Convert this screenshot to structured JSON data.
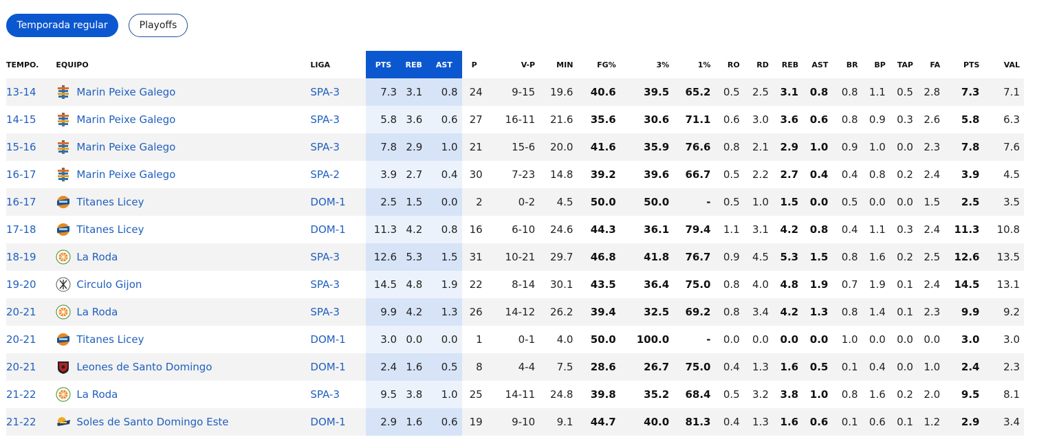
{
  "tabs": [
    {
      "label": "Temporada regular",
      "active": true
    },
    {
      "label": "Playoffs",
      "active": false
    }
  ],
  "headers": [
    "TEMPO.",
    "EQUIPO",
    "LIGA",
    "PTS",
    "REB",
    "AST",
    "P",
    "V-P",
    "MIN",
    "FG%",
    "3%",
    "1%",
    "RO",
    "RD",
    "REB",
    "AST",
    "BR",
    "BP",
    "TAP",
    "FA",
    "PTS",
    "VAL"
  ],
  "rows": [
    {
      "season": "13-14",
      "team": "Marin Peixe Galego",
      "logo": "marin-logo-icon",
      "league": "SPA-3",
      "pts_h": "7.3",
      "reb_h": "3.1",
      "ast_h": "0.8",
      "p": "24",
      "vp": "9-15",
      "min": "19.6",
      "fg": "40.6",
      "p3": "39.5",
      "p1": "65.2",
      "ro": "0.5",
      "rd": "2.5",
      "reb": "3.1",
      "ast": "0.8",
      "br": "0.8",
      "bp": "1.1",
      "tap": "0.5",
      "fa": "2.8",
      "pts": "7.3",
      "val": "7.1"
    },
    {
      "season": "14-15",
      "team": "Marin Peixe Galego",
      "logo": "marin-logo-icon",
      "league": "SPA-3",
      "pts_h": "5.8",
      "reb_h": "3.6",
      "ast_h": "0.6",
      "p": "27",
      "vp": "16-11",
      "min": "21.6",
      "fg": "35.6",
      "p3": "30.6",
      "p1": "71.1",
      "ro": "0.6",
      "rd": "3.0",
      "reb": "3.6",
      "ast": "0.6",
      "br": "0.8",
      "bp": "0.9",
      "tap": "0.3",
      "fa": "2.6",
      "pts": "5.8",
      "val": "6.3"
    },
    {
      "season": "15-16",
      "team": "Marin Peixe Galego",
      "logo": "marin-logo-icon",
      "league": "SPA-3",
      "pts_h": "7.8",
      "reb_h": "2.9",
      "ast_h": "1.0",
      "p": "21",
      "vp": "15-6",
      "min": "20.0",
      "fg": "41.6",
      "p3": "35.9",
      "p1": "76.6",
      "ro": "0.8",
      "rd": "2.1",
      "reb": "2.9",
      "ast": "1.0",
      "br": "0.9",
      "bp": "1.0",
      "tap": "0.0",
      "fa": "2.3",
      "pts": "7.8",
      "val": "7.6"
    },
    {
      "season": "16-17",
      "team": "Marin Peixe Galego",
      "logo": "marin-logo-icon",
      "league": "SPA-2",
      "pts_h": "3.9",
      "reb_h": "2.7",
      "ast_h": "0.4",
      "p": "30",
      "vp": "7-23",
      "min": "14.8",
      "fg": "39.2",
      "p3": "39.6",
      "p1": "66.7",
      "ro": "0.5",
      "rd": "2.2",
      "reb": "2.7",
      "ast": "0.4",
      "br": "0.4",
      "bp": "0.8",
      "tap": "0.2",
      "fa": "2.4",
      "pts": "3.9",
      "val": "4.5"
    },
    {
      "season": "16-17",
      "team": "Titanes Licey",
      "logo": "titanes-logo-icon",
      "league": "DOM-1",
      "pts_h": "2.5",
      "reb_h": "1.5",
      "ast_h": "0.0",
      "p": "2",
      "vp": "0-2",
      "min": "4.5",
      "fg": "50.0",
      "p3": "50.0",
      "p1": "-",
      "ro": "0.5",
      "rd": "1.0",
      "reb": "1.5",
      "ast": "0.0",
      "br": "0.5",
      "bp": "0.0",
      "tap": "0.0",
      "fa": "1.5",
      "pts": "2.5",
      "val": "3.5"
    },
    {
      "season": "17-18",
      "team": "Titanes Licey",
      "logo": "titanes-logo-icon",
      "league": "DOM-1",
      "pts_h": "11.3",
      "reb_h": "4.2",
      "ast_h": "0.8",
      "p": "16",
      "vp": "6-10",
      "min": "24.6",
      "fg": "44.3",
      "p3": "36.1",
      "p1": "79.4",
      "ro": "1.1",
      "rd": "3.1",
      "reb": "4.2",
      "ast": "0.8",
      "br": "0.4",
      "bp": "1.1",
      "tap": "0.3",
      "fa": "2.4",
      "pts": "11.3",
      "val": "10.8"
    },
    {
      "season": "18-19",
      "team": "La Roda",
      "logo": "laroda-logo-icon",
      "league": "SPA-3",
      "pts_h": "12.6",
      "reb_h": "5.3",
      "ast_h": "1.5",
      "p": "31",
      "vp": "10-21",
      "min": "29.7",
      "fg": "46.8",
      "p3": "41.8",
      "p1": "76.7",
      "ro": "0.9",
      "rd": "4.5",
      "reb": "5.3",
      "ast": "1.5",
      "br": "0.8",
      "bp": "1.6",
      "tap": "0.2",
      "fa": "2.5",
      "pts": "12.6",
      "val": "13.5"
    },
    {
      "season": "19-20",
      "team": "Circulo Gijon",
      "logo": "circulo-logo-icon",
      "league": "SPA-3",
      "pts_h": "14.5",
      "reb_h": "4.8",
      "ast_h": "1.9",
      "p": "22",
      "vp": "8-14",
      "min": "30.1",
      "fg": "43.5",
      "p3": "36.4",
      "p1": "75.0",
      "ro": "0.8",
      "rd": "4.0",
      "reb": "4.8",
      "ast": "1.9",
      "br": "0.7",
      "bp": "1.9",
      "tap": "0.1",
      "fa": "2.4",
      "pts": "14.5",
      "val": "13.1"
    },
    {
      "season": "20-21",
      "team": "La Roda",
      "logo": "laroda-logo-icon",
      "league": "SPA-3",
      "pts_h": "9.9",
      "reb_h": "4.2",
      "ast_h": "1.3",
      "p": "26",
      "vp": "14-12",
      "min": "26.2",
      "fg": "39.4",
      "p3": "32.5",
      "p1": "69.2",
      "ro": "0.8",
      "rd": "3.4",
      "reb": "4.2",
      "ast": "1.3",
      "br": "0.8",
      "bp": "1.4",
      "tap": "0.1",
      "fa": "2.3",
      "pts": "9.9",
      "val": "9.2"
    },
    {
      "season": "20-21",
      "team": "Titanes Licey",
      "logo": "titanes-logo-icon",
      "league": "DOM-1",
      "pts_h": "3.0",
      "reb_h": "0.0",
      "ast_h": "0.0",
      "p": "1",
      "vp": "0-1",
      "min": "4.0",
      "fg": "50.0",
      "p3": "100.0",
      "p1": "-",
      "ro": "0.0",
      "rd": "0.0",
      "reb": "0.0",
      "ast": "0.0",
      "br": "1.0",
      "bp": "0.0",
      "tap": "0.0",
      "fa": "0.0",
      "pts": "3.0",
      "val": "3.0"
    },
    {
      "season": "20-21",
      "team": "Leones de Santo Domingo",
      "logo": "leones-logo-icon",
      "league": "DOM-1",
      "pts_h": "2.4",
      "reb_h": "1.6",
      "ast_h": "0.5",
      "p": "8",
      "vp": "4-4",
      "min": "7.5",
      "fg": "28.6",
      "p3": "26.7",
      "p1": "75.0",
      "ro": "0.4",
      "rd": "1.3",
      "reb": "1.6",
      "ast": "0.5",
      "br": "0.1",
      "bp": "0.4",
      "tap": "0.0",
      "fa": "1.0",
      "pts": "2.4",
      "val": "2.3"
    },
    {
      "season": "21-22",
      "team": "La Roda",
      "logo": "laroda-logo-icon",
      "league": "SPA-3",
      "pts_h": "9.5",
      "reb_h": "3.8",
      "ast_h": "1.0",
      "p": "25",
      "vp": "14-11",
      "min": "24.8",
      "fg": "39.8",
      "p3": "35.2",
      "p1": "68.4",
      "ro": "0.5",
      "rd": "3.2",
      "reb": "3.8",
      "ast": "1.0",
      "br": "0.8",
      "bp": "1.6",
      "tap": "0.2",
      "fa": "2.0",
      "pts": "9.5",
      "val": "8.1"
    },
    {
      "season": "21-22",
      "team": "Soles de Santo Domingo Este",
      "logo": "soles-logo-icon",
      "league": "DOM-1",
      "pts_h": "2.9",
      "reb_h": "1.6",
      "ast_h": "0.6",
      "p": "19",
      "vp": "9-10",
      "min": "9.1",
      "fg": "44.7",
      "p3": "40.0",
      "p1": "81.3",
      "ro": "0.4",
      "rd": "1.3",
      "reb": "1.6",
      "ast": "0.6",
      "br": "0.1",
      "bp": "0.6",
      "tap": "0.1",
      "fa": "1.2",
      "pts": "2.9",
      "val": "3.4"
    }
  ]
}
